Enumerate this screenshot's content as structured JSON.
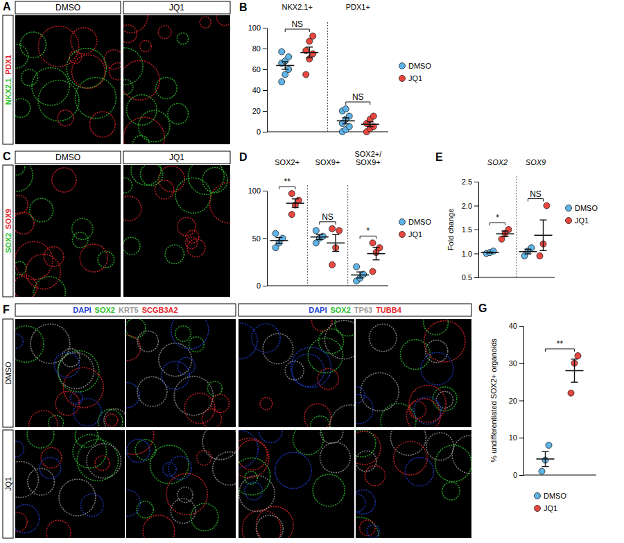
{
  "image_panels": [
    {
      "panel": "A",
      "columns": [
        "DMSO",
        "JQ1"
      ],
      "stains": [
        {
          "text": "NKX2.1",
          "color": "#2fc12f"
        },
        {
          "text": "PDX1",
          "color": "#e3262b"
        }
      ]
    },
    {
      "panel": "C",
      "columns": [
        "DMSO",
        "JQ1"
      ],
      "stains": [
        {
          "text": "SOX2",
          "color": "#2fc12f"
        },
        {
          "text": "SOX9",
          "color": "#e3262b"
        }
      ]
    },
    {
      "panel": "F",
      "rows": [
        "DMSO",
        "JQ1"
      ],
      "column_groups": [
        {
          "stains": [
            {
              "text": "DAPI",
              "color": "#1f3fd0"
            },
            {
              "text": "SOX2",
              "color": "#2fc12f"
            },
            {
              "text": "KRT5",
              "color": "#9a9a9a"
            },
            {
              "text": "SCGB3A2",
              "color": "#e3262b"
            }
          ]
        },
        {
          "stains": [
            {
              "text": "DAPI",
              "color": "#1f3fd0"
            },
            {
              "text": "SOX2",
              "color": "#2fc12f"
            },
            {
              "text": "TP63",
              "color": "#9a9a9a"
            },
            {
              "text": "TUBB4",
              "color": "#e3262b"
            }
          ]
        }
      ]
    }
  ],
  "chart_data": [
    {
      "panel": "B",
      "type": "dot",
      "categories": [
        "NKX2.1+",
        "PDX1+"
      ],
      "ylim": [
        0,
        100
      ],
      "yticks": [
        0,
        20,
        40,
        60,
        80,
        100
      ],
      "annotations": [
        "NS",
        "NS"
      ],
      "legend": "right",
      "series": [
        {
          "name": "DMSO",
          "color": "#5fb3e6",
          "values": [
            [
              48,
              55,
              60,
              66,
              68,
              72,
              77
            ],
            [
              0,
              2,
              5,
              8,
              12,
              15,
              20,
              22
            ]
          ],
          "mean": [
            63.7,
            10.5
          ],
          "error": [
            3.7,
            2.9
          ]
        },
        {
          "name": "JQ1",
          "color": "#e8473f",
          "values": [
            [
              55,
              70,
              75,
              78,
              87,
              92
            ],
            [
              0,
              3,
              5,
              8,
              12,
              15
            ]
          ],
          "mean": [
            76.2,
            7.2
          ],
          "error": [
            5.2,
            2.3
          ]
        }
      ]
    },
    {
      "panel": "D",
      "type": "dot",
      "categories": [
        "SOX2+",
        "SOX9+",
        "SOX2+/SOX9+"
      ],
      "ylim": [
        0,
        100
      ],
      "yticks": [
        0,
        50,
        100
      ],
      "annotations": [
        "**",
        "NS",
        "*"
      ],
      "legend": "right",
      "series": [
        {
          "name": "DMSO",
          "color": "#5fb3e6",
          "values": [
            [
              40,
              45,
              50,
              55
            ],
            [
              45,
              50,
              52,
              58
            ],
            [
              5,
              8,
              12,
              20
            ]
          ],
          "mean": [
            47.5,
            51.3,
            11.3
          ],
          "error": [
            3.2,
            2.7,
            3.2
          ]
        },
        {
          "name": "JQ1",
          "color": "#e8473f",
          "values": [
            [
              75,
              85,
              90,
              97
            ],
            [
              22,
              40,
              58,
              60
            ],
            [
              15,
              35,
              40,
              45
            ]
          ],
          "mean": [
            86.8,
            45,
            33.8
          ],
          "error": [
            4.6,
            8.9,
            6.6
          ]
        }
      ]
    },
    {
      "panel": "E",
      "type": "dot",
      "y_label": "Fold change",
      "categories": [
        "SOX2",
        "SOX9"
      ],
      "ylim": [
        0.5,
        2.5
      ],
      "yticks": [
        0.5,
        {
          "value": 1,
          "label": "1.0"
        },
        1.5,
        {
          "value": 2,
          "label": "2.0"
        },
        2.5
      ],
      "annotations": [
        "*",
        "NS"
      ],
      "legend": "right",
      "series": [
        {
          "name": "DMSO",
          "color": "#5fb3e6",
          "values": [
            [
              1.0,
              1.02,
              1.05
            ],
            [
              0.95,
              1.05,
              1.12
            ]
          ],
          "mean": [
            1.02,
            1.04
          ],
          "error": [
            0.01,
            0.05
          ]
        },
        {
          "name": "JQ1",
          "color": "#e8473f",
          "values": [
            [
              1.3,
              1.42,
              1.5
            ],
            [
              0.95,
              1.2,
              2.0
            ]
          ],
          "mean": [
            1.41,
            1.38
          ],
          "error": [
            0.06,
            0.32
          ]
        }
      ]
    },
    {
      "panel": "G",
      "type": "dot",
      "y_label": "% undifferentiated SOX2+ organoids",
      "categories": [
        null
      ],
      "ylim": [
        0,
        40
      ],
      "yticks": [
        0,
        10,
        20,
        30,
        40
      ],
      "annotations": [
        "**"
      ],
      "legend": "bottom",
      "series": [
        {
          "name": "DMSO",
          "color": "#5fb3e6",
          "values": [
            [
              1,
              4,
              8
            ]
          ],
          "mean": [
            4.3
          ],
          "error": [
            2.0
          ]
        },
        {
          "name": "JQ1",
          "color": "#e8473f",
          "values": [
            [
              22,
              30,
              32
            ]
          ],
          "mean": [
            28
          ],
          "error": [
            3.1
          ]
        }
      ]
    }
  ]
}
